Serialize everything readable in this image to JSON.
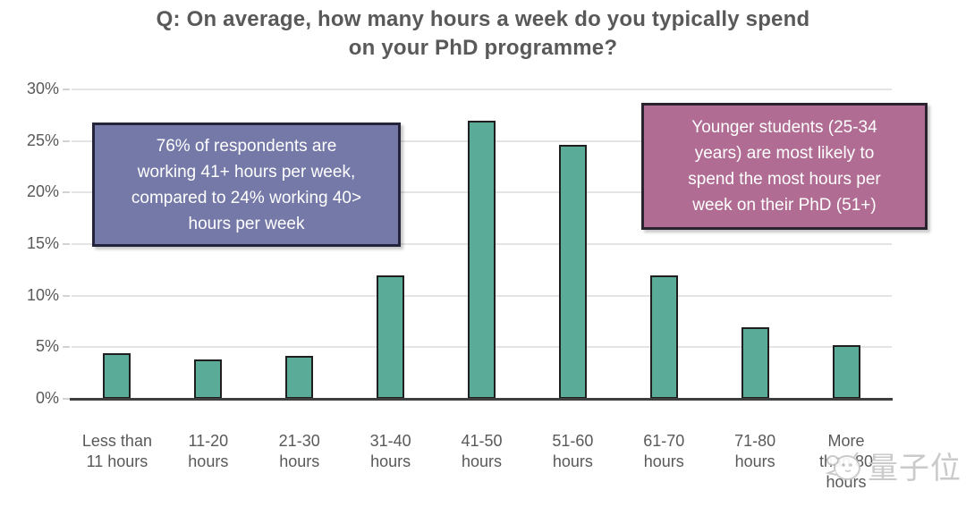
{
  "chart_data": {
    "type": "bar",
    "title": "Q: On average, how many hours a week do you typically spend\non your PhD programme?",
    "categories": [
      "Less than\n11 hours",
      "11-20\nhours",
      "21-30\nhours",
      "31-40\nhours",
      "41-50\nhours",
      "51-60\nhours",
      "61-70\nhours",
      "71-80\nhours",
      "More\nthan 80\nhours"
    ],
    "values": [
      4.4,
      3.8,
      4.2,
      12,
      27,
      24.6,
      12,
      6.9,
      5.2
    ],
    "ylabel": "",
    "xlabel": "",
    "ylim": [
      0,
      30
    ],
    "ytick_labels": [
      "0%",
      "5%",
      "10%",
      "15%",
      "20%",
      "25%",
      "30%"
    ],
    "grid": "horizontal",
    "legend": "none",
    "bar_color": "#5BAB99",
    "bar_border_color": "#1F1F1F",
    "axis_color": "#3F3F3F",
    "gridline_color": "#E4E4E4",
    "label_color": "#595959"
  },
  "annotations": {
    "left": {
      "text": "76% of respondents are\nworking 41+ hours per week,\ncompared to 24% working 40>\nhours per week",
      "bg": "#7579A8",
      "border": "#23233B",
      "text_color": "#FFFFFF"
    },
    "right": {
      "text": "Younger students (25-34\nyears) are most likely to\nspend the most hours per\nweek on their PhD (51+)",
      "bg": "#B06C92",
      "border": "#2B2230",
      "text_color": "#FFFFFF"
    }
  },
  "watermark": {
    "text": "量子位"
  }
}
